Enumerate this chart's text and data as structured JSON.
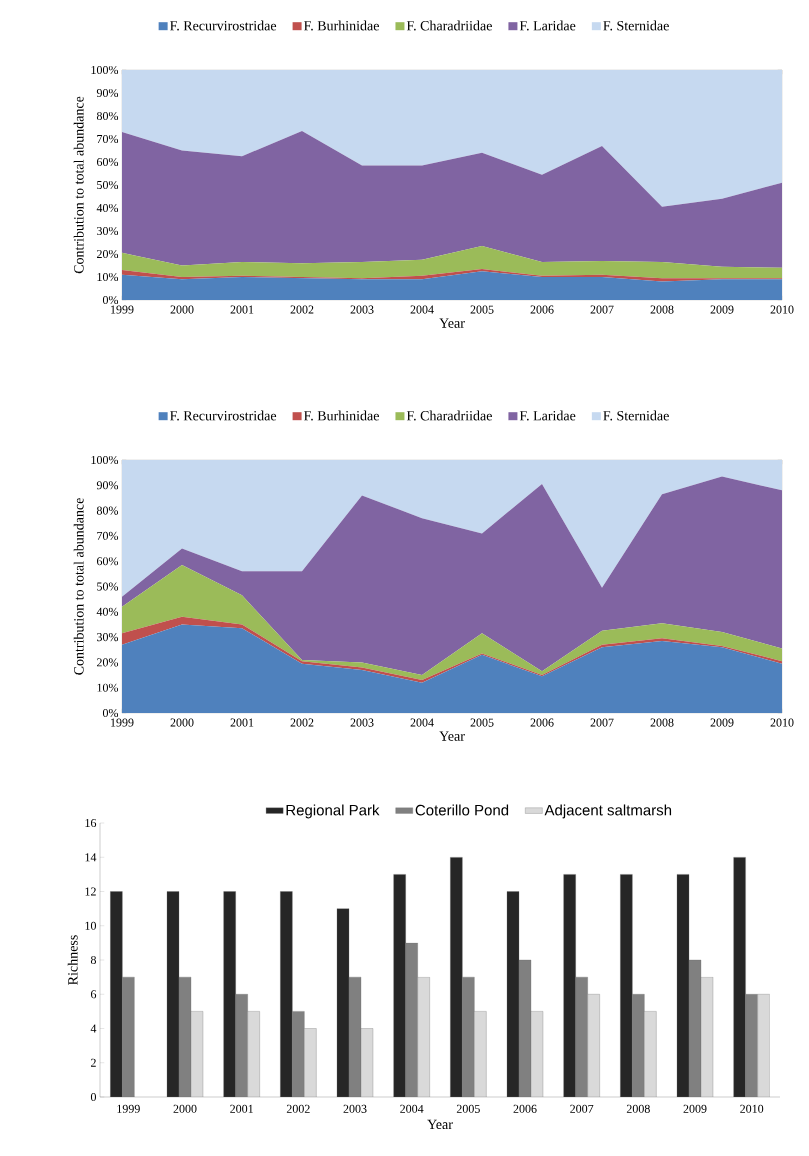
{
  "chart_data": [
    {
      "type": "area",
      "stacked": true,
      "categories": [
        "1999",
        "2000",
        "2001",
        "2002",
        "2003",
        "2004",
        "2005",
        "2006",
        "2007",
        "2008",
        "2009",
        "2010"
      ],
      "xlabel": "Year",
      "ylabel": "Contribution to total abundance",
      "ylim": [
        0,
        100
      ],
      "yticks": [
        {
          "value": 0,
          "label": "0%"
        },
        {
          "value": 10,
          "label": "10%"
        },
        {
          "value": 20,
          "label": "20%"
        },
        {
          "value": 30,
          "label": "30%"
        },
        {
          "value": 40,
          "label": "40%"
        },
        {
          "value": 50,
          "label": "50%"
        },
        {
          "value": 60,
          "label": "60%"
        },
        {
          "value": 70,
          "label": "70%"
        },
        {
          "value": 80,
          "label": "80%"
        },
        {
          "value": 90,
          "label": "90%"
        },
        {
          "value": 100,
          "label": "100%"
        }
      ],
      "legend": "top",
      "series": [
        {
          "name": "F. Recurvirostridae",
          "color": "#4f81bd",
          "values": [
            11,
            9,
            10,
            9.5,
            9,
            9,
            12.5,
            10,
            10,
            8,
            9,
            9
          ]
        },
        {
          "name": "F. Burhinidae",
          "color": "#c0504d",
          "values": [
            2,
            1,
            0.5,
            0.5,
            0.5,
            1.5,
            1,
            0.5,
            1,
            1.5,
            0.5,
            0.5
          ]
        },
        {
          "name": "F. Charadriidae",
          "color": "#9bbb59",
          "values": [
            7.5,
            5,
            6,
            6,
            7,
            7,
            10,
            6,
            6,
            7,
            5,
            4.5
          ]
        },
        {
          "name": "F. Laridae",
          "color": "#8064a2",
          "values": [
            52.5,
            50,
            46,
            57.5,
            42,
            41,
            40.5,
            38,
            50,
            24,
            29.5,
            37
          ]
        },
        {
          "name": "F. Sternidae",
          "color": "#c6d9f0",
          "values": [
            27,
            35,
            37.5,
            26.5,
            41.5,
            41.5,
            36,
            45.5,
            33,
            59.5,
            56,
            49
          ]
        }
      ]
    },
    {
      "type": "area",
      "stacked": true,
      "categories": [
        "1999",
        "2000",
        "2001",
        "2002",
        "2003",
        "2004",
        "2005",
        "2006",
        "2007",
        "2008",
        "2009",
        "2010"
      ],
      "xlabel": "Year",
      "ylabel": "Contribution to total abundance",
      "ylim": [
        0,
        100
      ],
      "yticks": [
        {
          "value": 0,
          "label": "0%"
        },
        {
          "value": 10,
          "label": "10%"
        },
        {
          "value": 20,
          "label": "20%"
        },
        {
          "value": 30,
          "label": "30%"
        },
        {
          "value": 40,
          "label": "40%"
        },
        {
          "value": 50,
          "label": "50%"
        },
        {
          "value": 60,
          "label": "60%"
        },
        {
          "value": 70,
          "label": "70%"
        },
        {
          "value": 80,
          "label": "80%"
        },
        {
          "value": 90,
          "label": "90%"
        },
        {
          "value": 100,
          "label": "100%"
        }
      ],
      "legend": "top",
      "series": [
        {
          "name": "F. Recurvirostridae",
          "color": "#4f81bd",
          "values": [
            27,
            35,
            33.5,
            19.5,
            17,
            12,
            23,
            14.5,
            26,
            28.5,
            26,
            19.5
          ]
        },
        {
          "name": "F. Burhinidae",
          "color": "#c0504d",
          "values": [
            4.5,
            3,
            1.5,
            1,
            1,
            1,
            0.5,
            0.5,
            1,
            1,
            0.5,
            1
          ]
        },
        {
          "name": "F. Charadriidae",
          "color": "#9bbb59",
          "values": [
            10.5,
            20.5,
            11.5,
            0.5,
            2,
            2,
            8,
            1.5,
            5.5,
            6,
            5.5,
            5
          ]
        },
        {
          "name": "F. Laridae",
          "color": "#8064a2",
          "values": [
            4,
            6.5,
            9.5,
            35,
            66,
            62,
            39.5,
            74,
            17,
            51,
            61.5,
            62.5
          ]
        },
        {
          "name": "F. Sternidae",
          "color": "#c6d9f0",
          "values": [
            54,
            35,
            44,
            44,
            14,
            23,
            29,
            9.5,
            50.5,
            13.5,
            6.5,
            12
          ]
        }
      ]
    },
    {
      "type": "bar",
      "categories": [
        "1999",
        "2000",
        "2001",
        "2002",
        "2003",
        "2004",
        "2005",
        "2006",
        "2007",
        "2008",
        "2009",
        "2010"
      ],
      "xlabel": "Year",
      "ylabel": "Richness",
      "ylim": [
        0,
        16
      ],
      "yticks": [
        0,
        2,
        4,
        6,
        8,
        10,
        12,
        14,
        16
      ],
      "legend": "top",
      "series": [
        {
          "name": "Regional Park",
          "color": "#262626",
          "values": [
            12,
            12,
            12,
            12,
            11,
            13,
            14,
            12,
            13,
            13,
            13,
            14
          ]
        },
        {
          "name": "Coterillo Pond",
          "color": "#808080",
          "values": [
            7,
            7,
            6,
            5,
            7,
            9,
            7,
            8,
            7,
            6,
            8,
            6
          ]
        },
        {
          "name": "Adjacent saltmarsh",
          "color": "#d9d9d9",
          "values": [
            null,
            5,
            5,
            4,
            4,
            7,
            5,
            5,
            6,
            5,
            7,
            6
          ]
        }
      ]
    }
  ]
}
